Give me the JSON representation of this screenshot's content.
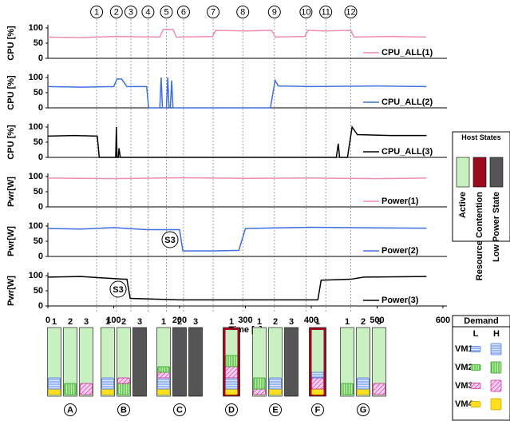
{
  "chart_data": [
    {
      "type": "line",
      "ylabel": "CPU [%]",
      "xlim": [
        0,
        600
      ],
      "ylim": [
        0,
        100
      ],
      "yticks": [
        0,
        50,
        100
      ],
      "x": [
        0,
        50,
        100,
        170,
        175,
        190,
        195,
        250,
        255,
        300,
        340,
        345,
        390,
        395,
        420,
        460,
        465,
        520,
        575
      ],
      "series": [
        {
          "name": "CPU_ALL(1)",
          "color": "#f08cb4",
          "values": [
            70,
            68,
            72,
            70,
            95,
            95,
            70,
            72,
            92,
            90,
            92,
            70,
            72,
            92,
            90,
            92,
            70,
            72,
            70
          ]
        }
      ]
    },
    {
      "type": "line",
      "ylabel": "CPU [%]",
      "xlim": [
        0,
        600
      ],
      "ylim": [
        0,
        100
      ],
      "yticks": [
        0,
        50,
        100
      ],
      "x": [
        0,
        50,
        100,
        105,
        112,
        120,
        150,
        153,
        170,
        172,
        174,
        180,
        182,
        184,
        186,
        188,
        190,
        250,
        338,
        345,
        350,
        400,
        500,
        575
      ],
      "series": [
        {
          "name": "CPU_ALL(2)",
          "color": "#3f6fe0",
          "values": [
            70,
            68,
            70,
            95,
            95,
            70,
            70,
            0,
            0,
            100,
            0,
            0,
            100,
            0,
            0,
            90,
            0,
            0,
            0,
            90,
            72,
            70,
            72,
            70
          ]
        }
      ]
    },
    {
      "type": "line",
      "ylabel": "CPU [%]",
      "xlim": [
        0,
        600
      ],
      "ylim": [
        0,
        100
      ],
      "yticks": [
        0,
        50,
        100
      ],
      "x": [
        0,
        40,
        75,
        78,
        100,
        103,
        104,
        105,
        107,
        108,
        110,
        200,
        438,
        441,
        443,
        455,
        462,
        470,
        520,
        575
      ],
      "series": [
        {
          "name": "CPU_ALL(3)",
          "color": "#000000",
          "values": [
            70,
            72,
            70,
            0,
            0,
            0,
            100,
            0,
            0,
            30,
            0,
            0,
            0,
            45,
            0,
            0,
            100,
            75,
            72,
            72
          ]
        }
      ]
    },
    {
      "type": "line",
      "ylabel": "Pwr[W]",
      "xlim": [
        0,
        600
      ],
      "ylim": [
        0,
        100
      ],
      "yticks": [
        0,
        50,
        100
      ],
      "x": [
        0,
        100,
        200,
        300,
        400,
        500,
        575
      ],
      "series": [
        {
          "name": "Power(1)",
          "color": "#f08cb4",
          "values": [
            95,
            93,
            96,
            94,
            95,
            93,
            95
          ]
        }
      ]
    },
    {
      "type": "line",
      "ylabel": "Pwr[W]",
      "xlim": [
        0,
        600
      ],
      "ylim": [
        0,
        100
      ],
      "yticks": [
        0,
        50,
        100
      ],
      "annotation": "S3",
      "x": [
        0,
        50,
        100,
        150,
        200,
        205,
        250,
        290,
        300,
        400,
        500,
        575
      ],
      "series": [
        {
          "name": "Power(2)",
          "color": "#3f6fe0",
          "values": [
            92,
            90,
            95,
            88,
            88,
            18,
            18,
            20,
            92,
            96,
            94,
            93
          ]
        }
      ]
    },
    {
      "type": "line",
      "ylabel": "Pwr[W]",
      "xlim": [
        0,
        600
      ],
      "ylim": [
        0,
        100
      ],
      "yticks": [
        0,
        50,
        100
      ],
      "annotation": "S3",
      "xticks": [
        0,
        100,
        200,
        300,
        400,
        500,
        600
      ],
      "xlabel": "Time [s]",
      "x": [
        0,
        50,
        115,
        120,
        125,
        200,
        300,
        410,
        415,
        460,
        480,
        575
      ],
      "series": [
        {
          "name": "Power(3)",
          "color": "#000000",
          "values": [
            95,
            97,
            88,
            88,
            25,
            20,
            20,
            20,
            85,
            88,
            95,
            97
          ]
        }
      ]
    }
  ],
  "events": {
    "labels": [
      "1",
      "2",
      "3",
      "4",
      "5",
      "6",
      "7",
      "8",
      "9",
      "10",
      "11",
      "12"
    ],
    "x": [
      74,
      104,
      126,
      152,
      180,
      206,
      251,
      296,
      344,
      392,
      422,
      460
    ]
  },
  "host_states": {
    "title": "Host States",
    "items": [
      {
        "label": "Active",
        "color": "#c8f0c0"
      },
      {
        "label": "Resource Contention",
        "color": "#9b0a1e"
      },
      {
        "label": "Low Power State",
        "color": "#555555"
      }
    ]
  },
  "scenarios": [
    {
      "label": "A",
      "hosts": [
        "1",
        "2",
        "3"
      ]
    },
    {
      "label": "B",
      "hosts": [
        "1",
        "2",
        "3"
      ]
    },
    {
      "label": "C",
      "hosts": [
        "1",
        "2",
        "3"
      ]
    },
    {
      "label": "D",
      "hosts": [
        "1"
      ]
    },
    {
      "label": "E",
      "hosts": [
        "1",
        "2",
        "3"
      ]
    },
    {
      "label": "F",
      "hosts": [
        "1"
      ]
    },
    {
      "label": "G",
      "hosts": [
        "1",
        "2",
        "3"
      ]
    }
  ],
  "demand": {
    "title": "Demand",
    "columns": [
      "L",
      "H"
    ],
    "rows": [
      "VM1",
      "VM2",
      "VM3",
      "VM4"
    ]
  }
}
